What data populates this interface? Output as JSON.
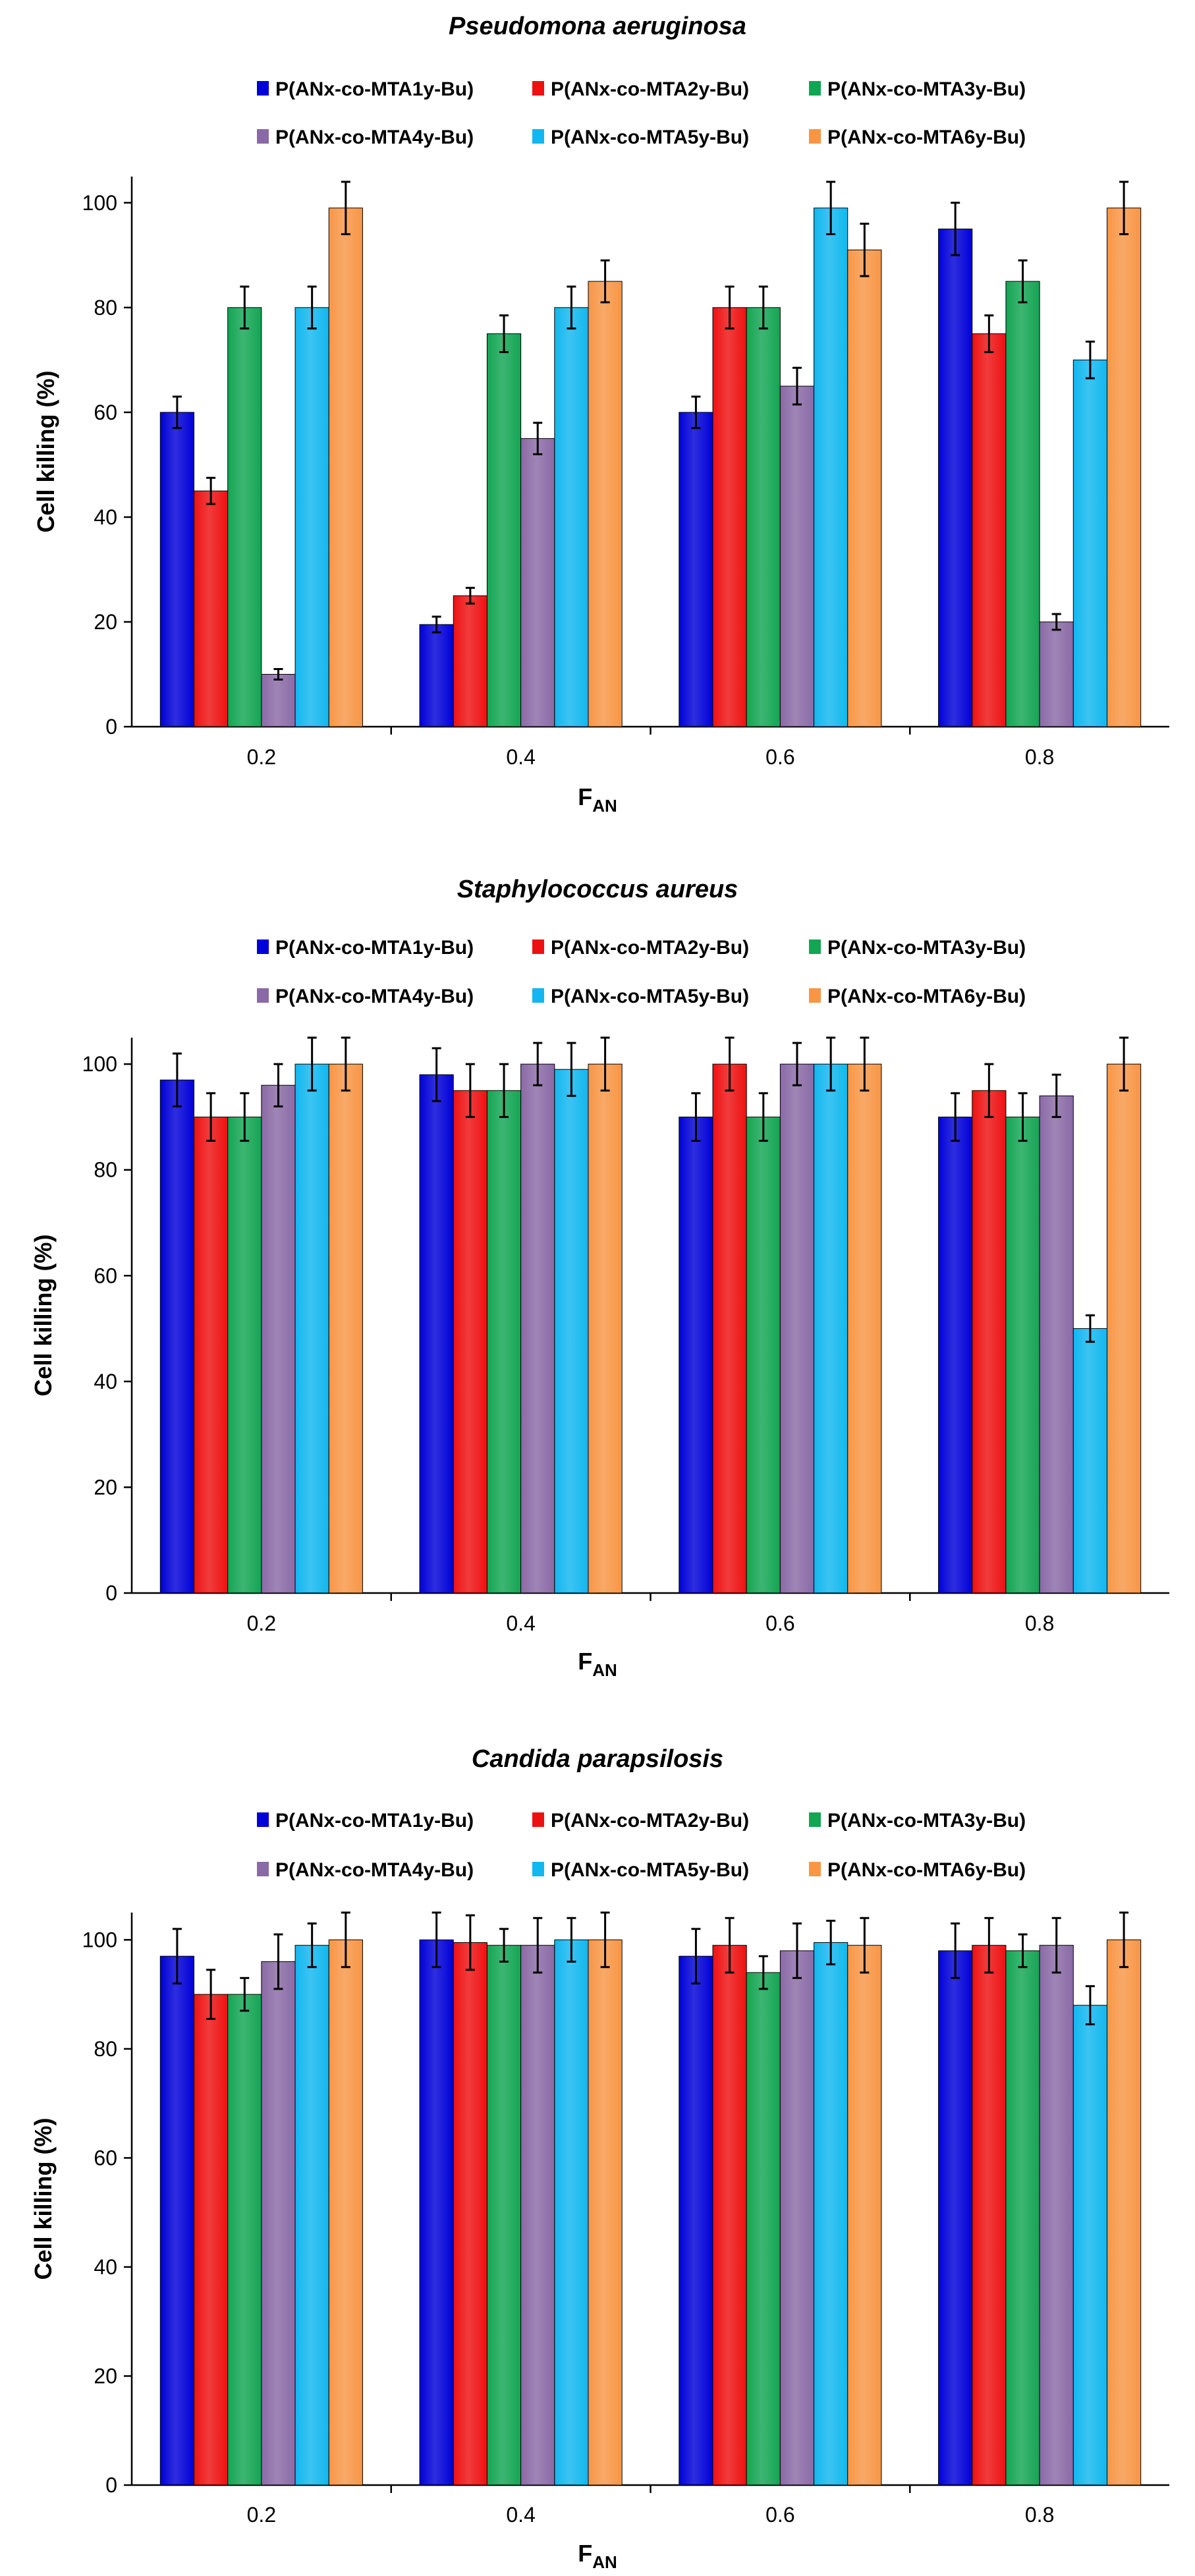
{
  "chart_data": [
    {
      "type": "bar",
      "title": "Pseudomona aeruginosa",
      "xlabel": "F",
      "xlabel_sub": "AN",
      "ylabel": "Cell killing (%)",
      "ylim": [
        0,
        100
      ],
      "yticks": [
        0,
        20,
        40,
        60,
        80,
        100
      ],
      "categories": [
        "0.2",
        "0.4",
        "0.6",
        "0.8"
      ],
      "series": [
        {
          "name": "P(ANx-co-MTA1y-Bu)",
          "color": "#0000d8",
          "values": [
            60,
            19.5,
            60,
            95
          ],
          "errors": [
            3,
            1.5,
            3,
            5
          ]
        },
        {
          "name": "P(ANx-co-MTA2y-Bu)",
          "color": "#ee1111",
          "values": [
            45,
            25,
            80,
            75
          ],
          "errors": [
            2.5,
            1.5,
            4,
            3.5
          ]
        },
        {
          "name": "P(ANx-co-MTA3y-Bu)",
          "color": "#13a553",
          "values": [
            80,
            75,
            80,
            85
          ],
          "errors": [
            4,
            3.5,
            4,
            4
          ]
        },
        {
          "name": "P(ANx-co-MTA4y-Bu)",
          "color": "#8a6aa6",
          "values": [
            10,
            55,
            65,
            20
          ],
          "errors": [
            1,
            3,
            3.5,
            1.5
          ]
        },
        {
          "name": "P(ANx-co-MTA5y-Bu)",
          "color": "#11b7ef",
          "values": [
            80,
            80,
            99,
            70
          ],
          "errors": [
            4,
            4,
            5,
            3.5
          ]
        },
        {
          "name": "P(ANx-co-MTA6y-Bu)",
          "color": "#f79646",
          "values": [
            99,
            85,
            91,
            99
          ],
          "errors": [
            5,
            4,
            5,
            5
          ]
        }
      ]
    },
    {
      "type": "bar",
      "title": "Staphylococcus aureus",
      "xlabel": "F",
      "xlabel_sub": "AN",
      "ylabel": "Cell killing (%)",
      "ylim": [
        0,
        100
      ],
      "yticks": [
        0,
        20,
        40,
        60,
        80,
        100
      ],
      "categories": [
        "0.2",
        "0.4",
        "0.6",
        "0.8"
      ],
      "series": [
        {
          "name": "P(ANx-co-MTA1y-Bu)",
          "color": "#0000d8",
          "values": [
            97,
            98,
            90,
            90
          ],
          "errors": [
            5,
            5,
            4.5,
            4.5
          ]
        },
        {
          "name": "P(ANx-co-MTA2y-Bu)",
          "color": "#ee1111",
          "values": [
            90,
            95,
            100,
            95
          ],
          "errors": [
            4.5,
            5,
            5,
            5
          ]
        },
        {
          "name": "P(ANx-co-MTA3y-Bu)",
          "color": "#13a553",
          "values": [
            90,
            95,
            90,
            90
          ],
          "errors": [
            4.5,
            5,
            4.5,
            4.5
          ]
        },
        {
          "name": "P(ANx-co-MTA4y-Bu)",
          "color": "#8a6aa6",
          "values": [
            96,
            100,
            100,
            94
          ],
          "errors": [
            4,
            4,
            4,
            4
          ]
        },
        {
          "name": "P(ANx-co-MTA5y-Bu)",
          "color": "#11b7ef",
          "values": [
            100,
            99,
            100,
            50
          ],
          "errors": [
            5,
            5,
            5,
            2.5
          ]
        },
        {
          "name": "P(ANx-co-MTA6y-Bu)",
          "color": "#f79646",
          "values": [
            100,
            100,
            100,
            100
          ],
          "errors": [
            5,
            5,
            5,
            5
          ]
        }
      ]
    },
    {
      "type": "bar",
      "title": "Candida parapsilosis",
      "xlabel": "F",
      "xlabel_sub": "AN",
      "ylabel": "Cell killing (%)",
      "ylim": [
        0,
        100
      ],
      "yticks": [
        0,
        20,
        40,
        60,
        80,
        100
      ],
      "categories": [
        "0.2",
        "0.4",
        "0.6",
        "0.8"
      ],
      "series": [
        {
          "name": "P(ANx-co-MTA1y-Bu)",
          "color": "#0000d8",
          "values": [
            97,
            100,
            97,
            98
          ],
          "errors": [
            5,
            5,
            5,
            5
          ]
        },
        {
          "name": "P(ANx-co-MTA2y-Bu)",
          "color": "#ee1111",
          "values": [
            90,
            99.5,
            99,
            99
          ],
          "errors": [
            4.5,
            5,
            5,
            5
          ]
        },
        {
          "name": "P(ANx-co-MTA3y-Bu)",
          "color": "#13a553",
          "values": [
            90,
            99,
            94,
            98
          ],
          "errors": [
            3,
            3,
            3,
            3
          ]
        },
        {
          "name": "P(ANx-co-MTA4y-Bu)",
          "color": "#8a6aa6",
          "values": [
            96,
            99,
            98,
            99
          ],
          "errors": [
            5,
            5,
            5,
            5
          ]
        },
        {
          "name": "P(ANx-co-MTA5y-Bu)",
          "color": "#11b7ef",
          "values": [
            99,
            100,
            99.5,
            88
          ],
          "errors": [
            4,
            4,
            4,
            3.5
          ]
        },
        {
          "name": "P(ANx-co-MTA6y-Bu)",
          "color": "#f79646",
          "values": [
            100,
            100,
            99,
            100
          ],
          "errors": [
            5,
            5,
            5,
            5
          ]
        }
      ]
    }
  ]
}
